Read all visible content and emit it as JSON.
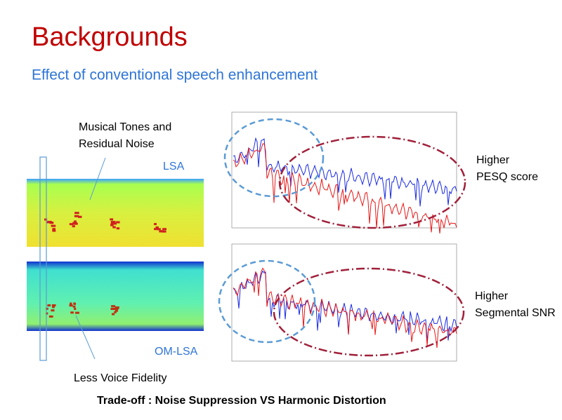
{
  "title": "Backgrounds",
  "subtitle": "Effect of conventional speech enhancement",
  "annotations": {
    "musical_line1": "Musical Tones and",
    "musical_line2": "Residual Noise",
    "lsa": "LSA",
    "omlsa": "OM-LSA",
    "fidelity": "Less Voice Fidelity",
    "pesq_line1": "Higher",
    "pesq_line2": "PESQ score",
    "snr_line1": "Higher",
    "snr_line2": "Segmental SNR"
  },
  "footer": "Trade-off : Noise Suppression VS  Harmonic Distortion"
}
